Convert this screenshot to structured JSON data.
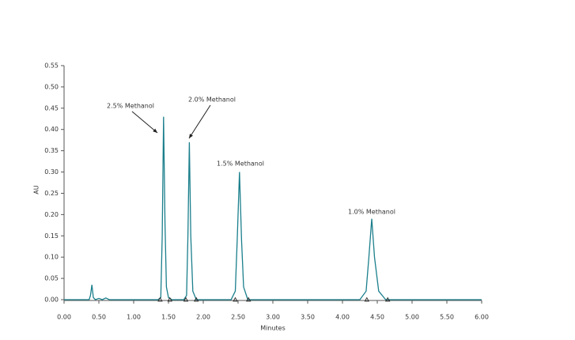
{
  "chart_data": {
    "type": "line",
    "xlabel": "Minutes",
    "ylabel": "AU",
    "color": "#1b7f8c",
    "x": [
      0,
      0.36,
      0.38,
      0.4,
      0.42,
      0.45,
      0.5,
      0.55,
      0.6,
      0.65,
      1.35,
      1.39,
      1.41,
      1.43,
      1.45,
      1.47,
      1.5,
      1.55,
      1.72,
      1.76,
      1.78,
      1.8,
      1.82,
      1.85,
      1.9,
      2.4,
      2.46,
      2.49,
      2.52,
      2.55,
      2.58,
      2.64,
      4.25,
      4.34,
      4.38,
      4.42,
      4.46,
      4.52,
      4.62,
      6.0
    ],
    "values": [
      0,
      0,
      0.01,
      0.035,
      0.005,
      0,
      0.003,
      0,
      0.004,
      0,
      0,
      0.005,
      0.15,
      0.43,
      0.18,
      0.03,
      0.005,
      0,
      0,
      0.01,
      0.15,
      0.37,
      0.15,
      0.02,
      0,
      0,
      0.02,
      0.15,
      0.3,
      0.14,
      0.03,
      0,
      0,
      0.02,
      0.1,
      0.19,
      0.1,
      0.02,
      0,
      0
    ],
    "integration_marks": [
      1.38,
      1.52,
      1.75,
      1.9,
      2.46,
      2.65,
      4.35,
      4.65
    ],
    "annotations": [
      "2.5% Methanol",
      "2.0% Methanol",
      "1.5% Methanol",
      "1.0% Methanol"
    ],
    "xlim": [
      0,
      6
    ],
    "xticks": [
      {
        "value": 0,
        "label": "0.00"
      },
      {
        "value": 0.5,
        "label": "0.50"
      },
      {
        "value": 1,
        "label": "1.00"
      },
      {
        "value": 1.5,
        "label": "1.50"
      },
      {
        "value": 2,
        "label": "2.00"
      },
      {
        "value": 2.5,
        "label": "2.50"
      },
      {
        "value": 3,
        "label": "3.00"
      },
      {
        "value": 3.5,
        "label": "3.50"
      },
      {
        "value": 4,
        "label": "4.00"
      },
      {
        "value": 4.5,
        "label": "4.50"
      },
      {
        "value": 5,
        "label": "5.00"
      },
      {
        "value": 5.5,
        "label": "5.50"
      },
      {
        "value": 6,
        "label": "6.00"
      }
    ],
    "ylim": [
      0,
      0.55
    ],
    "yticks": [
      {
        "value": 0,
        "label": "0.00"
      },
      {
        "value": 0.05,
        "label": "0.05"
      },
      {
        "value": 0.1,
        "label": "0.10"
      },
      {
        "value": 0.15,
        "label": "0.15"
      },
      {
        "value": 0.2,
        "label": "0.20"
      },
      {
        "value": 0.25,
        "label": "0.25"
      },
      {
        "value": 0.3,
        "label": "0.30"
      },
      {
        "value": 0.35,
        "label": "0.35"
      },
      {
        "value": 0.4,
        "label": "0.40"
      },
      {
        "value": 0.45,
        "label": "0.45"
      },
      {
        "value": 0.5,
        "label": "0.50"
      },
      {
        "value": 0.55,
        "label": "0.55"
      }
    ]
  }
}
